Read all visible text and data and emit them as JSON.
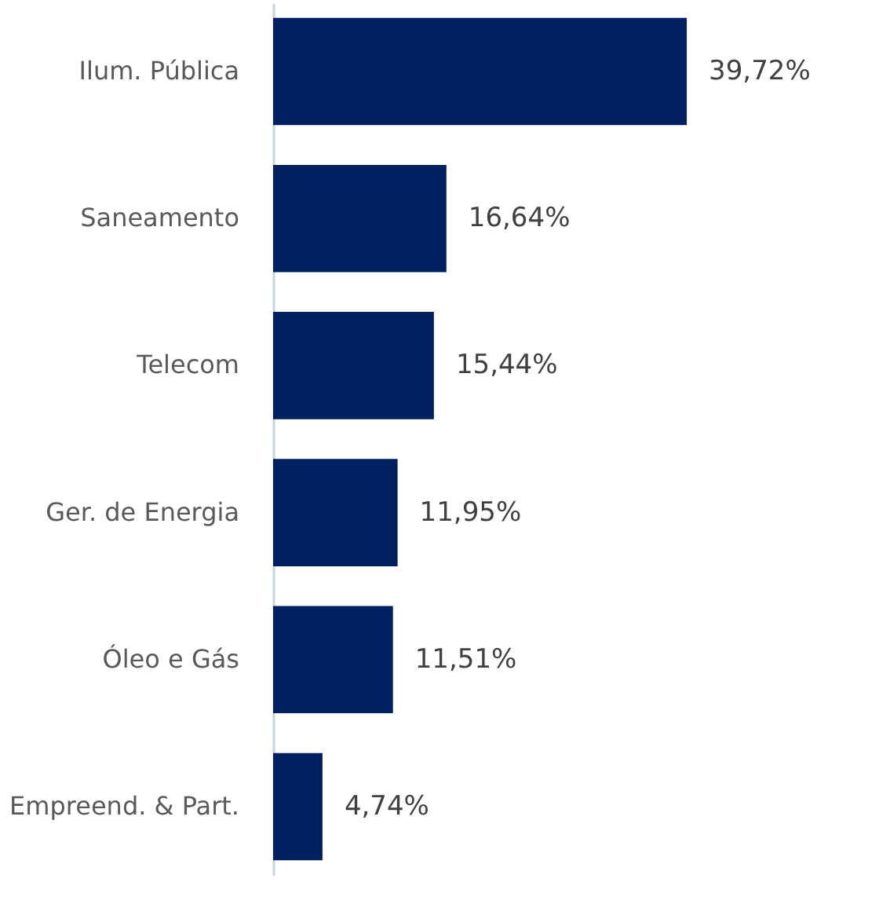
{
  "chart_data": {
    "type": "bar",
    "orientation": "horizontal",
    "categories": [
      "Ilum. Pública",
      "Saneamento",
      "Telecom",
      "Ger. de Energia",
      "Óleo e Gás",
      "Empreend. & Part."
    ],
    "values": [
      39.72,
      16.64,
      15.44,
      11.95,
      11.51,
      4.74
    ],
    "value_labels": [
      "39,72%",
      "16,64%",
      "15,44%",
      "11,95%",
      "11,51%",
      "4,74%"
    ],
    "color": "#002060",
    "xlim": [
      0,
      52
    ],
    "grid": false
  }
}
